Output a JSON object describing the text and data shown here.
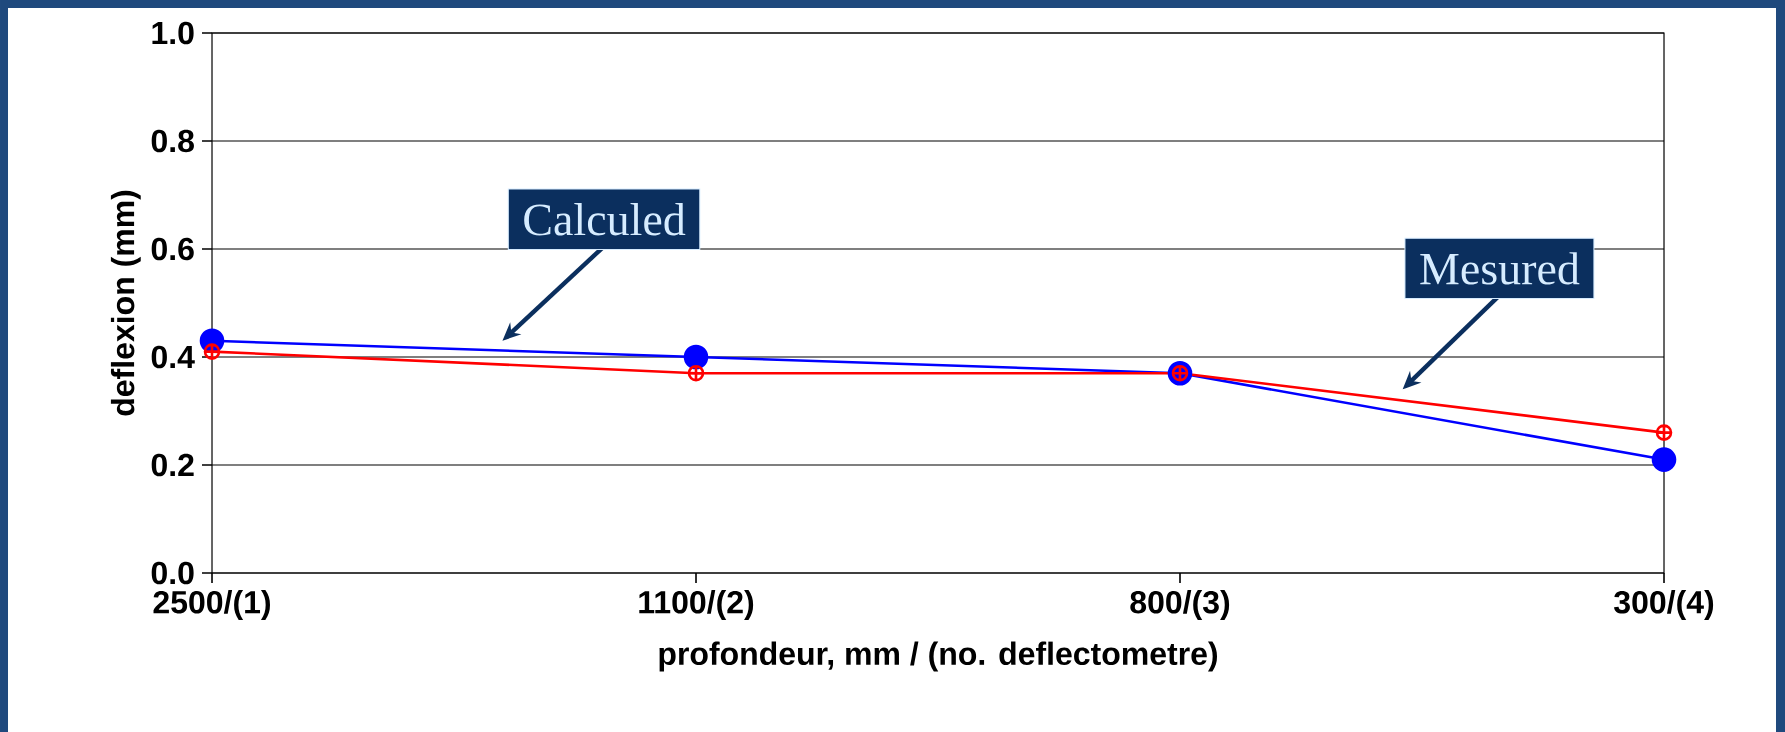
{
  "chart_data": {
    "type": "line",
    "xlabel": "profondeur,  mm  /  (no.  deflectometre)",
    "ylabel": "deflexion  (mm)",
    "categories": [
      "2500/(1)",
      "1100/(2)",
      "800/(3)",
      "300/(4)"
    ],
    "series": [
      {
        "name": "Calculed",
        "color": "#0000ff",
        "marker": "circle",
        "values": [
          0.43,
          0.4,
          0.37,
          0.21
        ]
      },
      {
        "name": "Mesured",
        "color": "#ff0000",
        "marker": "cross",
        "values": [
          0.41,
          0.37,
          0.37,
          0.26
        ]
      }
    ],
    "ylim": [
      0,
      1
    ],
    "yticks": [
      {
        "value": 0,
        "label": "0.0"
      },
      {
        "value": 0.2,
        "label": "0.2"
      },
      {
        "value": 0.4,
        "label": "0.4"
      },
      {
        "value": 0.6,
        "label": "0.6"
      },
      {
        "value": 0.8,
        "label": "0.8"
      },
      {
        "value": 1,
        "label": "1.0"
      }
    ],
    "grid": "y",
    "line_style": "solid"
  }
}
